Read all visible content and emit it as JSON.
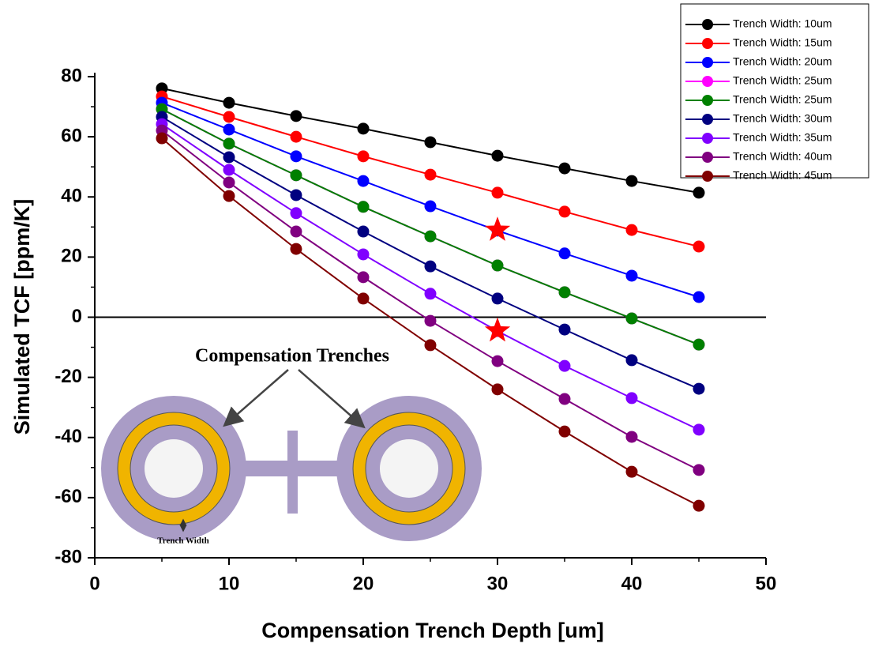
{
  "chart_data": {
    "type": "line",
    "x_label": "Compensation Trench Depth [um]",
    "y_label": "Simulated TCF [ppm/K]",
    "x": [
      5,
      10,
      15,
      20,
      25,
      30,
      35,
      40,
      45
    ],
    "xlim": [
      0,
      50
    ],
    "xticks": [
      0,
      10,
      20,
      30,
      40,
      50
    ],
    "ylim": [
      -80,
      80
    ],
    "yticks": [
      -80,
      -60,
      -40,
      -20,
      0,
      20,
      40,
      60,
      80
    ],
    "zero_line": true,
    "legend": "top-right",
    "series": [
      {
        "name": "Trench Width: 10um",
        "color": "#000000",
        "values": [
          76.1,
          71.3,
          66.9,
          62.7,
          58.2,
          53.7,
          49.5,
          45.3,
          41.4
        ]
      },
      {
        "name": "Trench Width: 15um",
        "color": "#ff0000",
        "values": [
          73.4,
          66.6,
          60.0,
          53.5,
          47.4,
          41.4,
          35.1,
          29.0,
          23.5
        ]
      },
      {
        "name": "Trench Width: 20um",
        "color": "#0000ff",
        "values": [
          71.3,
          62.4,
          53.5,
          45.3,
          36.9,
          28.8,
          21.2,
          13.8,
          6.7
        ]
      },
      {
        "name": "Trench Width: 25um",
        "color": "#ff00ff",
        "values": [
          69.2,
          57.7,
          47.2,
          36.7,
          26.9,
          17.2,
          8.3,
          -0.4,
          -9.1
        ]
      },
      {
        "name": "Trench Width: 25um",
        "color": "#008000",
        "values": [
          69.2,
          57.7,
          47.2,
          36.7,
          26.9,
          17.2,
          8.3,
          -0.4,
          -9.1
        ]
      },
      {
        "name": "Trench Width: 30um",
        "color": "#000080",
        "values": [
          66.6,
          53.2,
          40.6,
          28.5,
          16.9,
          6.2,
          -4.1,
          -14.3,
          -23.8
        ]
      },
      {
        "name": "Trench Width: 35um",
        "color": "#8000ff",
        "values": [
          64.2,
          49.0,
          34.6,
          20.9,
          7.8,
          -4.6,
          -16.2,
          -26.9,
          -37.4
        ]
      },
      {
        "name": "Trench Width: 40um",
        "color": "#800080",
        "values": [
          62.1,
          44.8,
          28.5,
          13.3,
          -1.2,
          -14.6,
          -27.2,
          -39.8,
          -50.8
        ]
      },
      {
        "name": "Trench Width: 45um",
        "color": "#800000",
        "values": [
          59.5,
          40.3,
          22.7,
          6.2,
          -9.3,
          -24.0,
          -38.0,
          -51.4,
          -62.7
        ]
      }
    ],
    "highlights": {
      "color": "#ff0000",
      "x": [
        30,
        30
      ],
      "values": [
        29.0,
        -4.5
      ]
    },
    "inset": {
      "title": "Compensation Trenches",
      "width_label": "Trench Width"
    }
  }
}
